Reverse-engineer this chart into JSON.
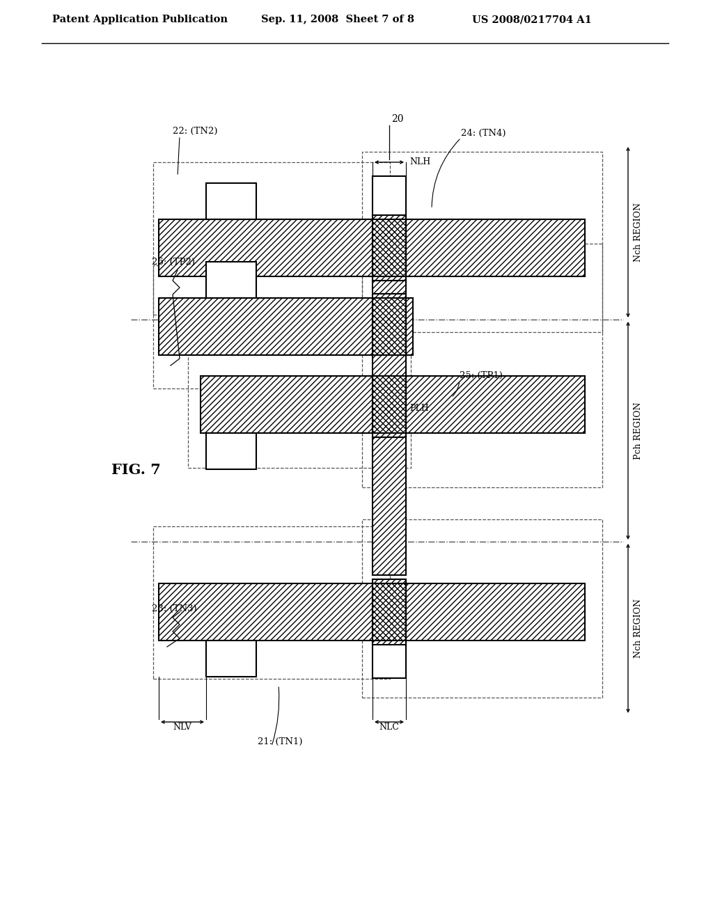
{
  "bg_color": "#ffffff",
  "lc": "#000000",
  "dc": "#555555",
  "header_left": "Patent Application Publication",
  "header_mid": "Sep. 11, 2008  Sheet 7 of 8",
  "header_right": "US 2008/0217704 A1",
  "fig_label": "FIG. 7",
  "label_20": "20",
  "label_21": "21: (TN1)",
  "label_22": "22: (TN2)",
  "label_23": "23: (TN3)",
  "label_24": "24: (TN4)",
  "label_25": "25: (TP1)",
  "label_26": "26: (TP2)",
  "dim_NLH": "NLH",
  "dim_NLV": "NLV",
  "dim_NLC": "NLC",
  "dim_PLH": "PLH",
  "region_nch": "Nch REGION",
  "region_pch": "Pch REGION",
  "note_waveform": true
}
